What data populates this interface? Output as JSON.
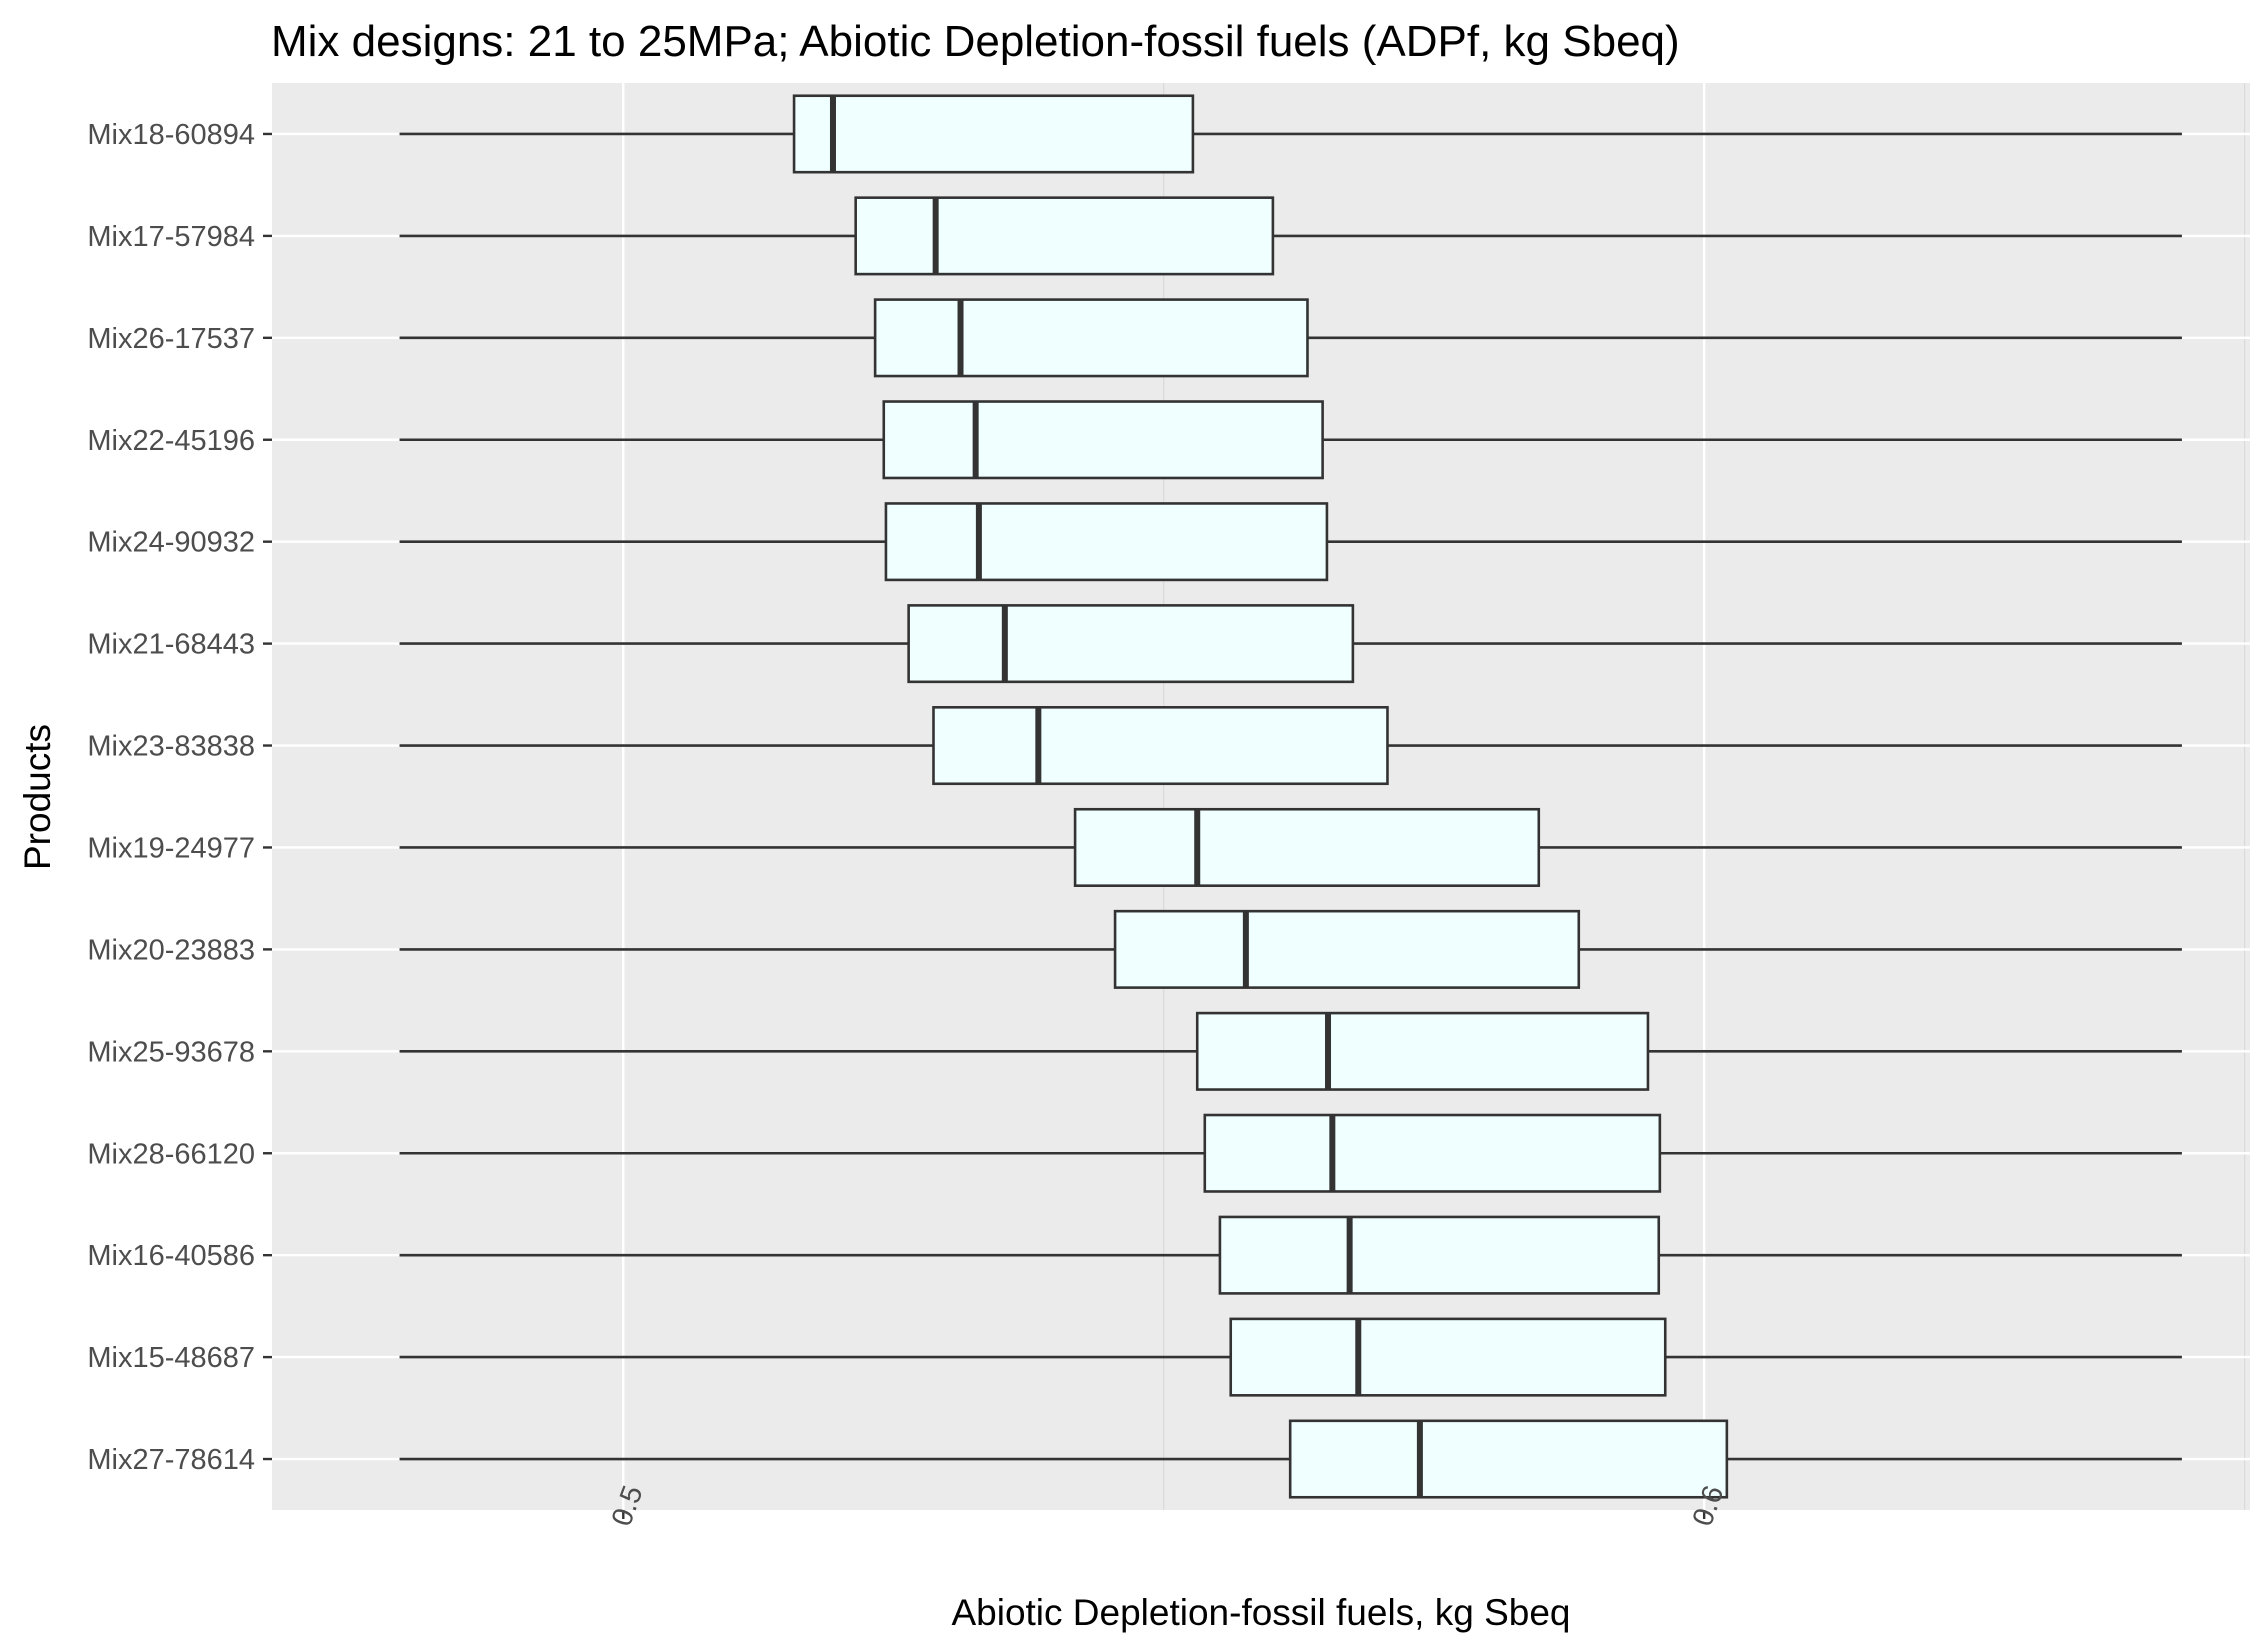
{
  "chart_data": {
    "type": "boxplot",
    "orientation": "horizontal",
    "title": "Mix designs: 21 to 25MPa; Abiotic Depletion-fossil fuels (ADPf, kg Sbeq)",
    "xlabel": "Abiotic Depletion-fossil fuels, kg Sbeq",
    "ylabel": "Products",
    "xlim": [
      0.4675,
      0.6505
    ],
    "x_ticks": [
      0.5,
      0.6
    ],
    "x_tick_labels": [
      "0.5",
      "0.6"
    ],
    "x_tick_label_rotation": -70,
    "grid": true,
    "legend": "none",
    "box_fill": "#F0FFFF",
    "line_color": "#333333",
    "panel_background": "#EBEBEB",
    "grid_color": "#FFFFFF",
    "boxes": [
      {
        "label": "Mix18-60894",
        "whisker_low": 0.4793,
        "q1": 0.5158,
        "median": 0.5194,
        "q3": 0.5527,
        "whisker_high": 0.6442
      },
      {
        "label": "Mix17-57984",
        "whisker_low": 0.4793,
        "q1": 0.5215,
        "median": 0.5289,
        "q3": 0.5601,
        "whisker_high": 0.6442
      },
      {
        "label": "Mix26-17537",
        "whisker_low": 0.4793,
        "q1": 0.5233,
        "median": 0.5312,
        "q3": 0.5633,
        "whisker_high": 0.6442
      },
      {
        "label": "Mix22-45196",
        "whisker_low": 0.4793,
        "q1": 0.5241,
        "median": 0.5326,
        "q3": 0.5647,
        "whisker_high": 0.6442
      },
      {
        "label": "Mix24-90932",
        "whisker_low": 0.4793,
        "q1": 0.5243,
        "median": 0.5329,
        "q3": 0.5651,
        "whisker_high": 0.6442
      },
      {
        "label": "Mix21-68443",
        "whisker_low": 0.4793,
        "q1": 0.5264,
        "median": 0.5353,
        "q3": 0.5675,
        "whisker_high": 0.6442
      },
      {
        "label": "Mix23-83838",
        "whisker_low": 0.4793,
        "q1": 0.5287,
        "median": 0.5384,
        "q3": 0.5707,
        "whisker_high": 0.6442
      },
      {
        "label": "Mix19-24977",
        "whisker_low": 0.4793,
        "q1": 0.5418,
        "median": 0.5531,
        "q3": 0.5847,
        "whisker_high": 0.6442
      },
      {
        "label": "Mix20-23883",
        "whisker_low": 0.4793,
        "q1": 0.5455,
        "median": 0.5576,
        "q3": 0.5884,
        "whisker_high": 0.6442
      },
      {
        "label": "Mix25-93678",
        "whisker_low": 0.4793,
        "q1": 0.5531,
        "median": 0.5652,
        "q3": 0.5948,
        "whisker_high": 0.6442
      },
      {
        "label": "Mix28-66120",
        "whisker_low": 0.4793,
        "q1": 0.5538,
        "median": 0.5656,
        "q3": 0.5959,
        "whisker_high": 0.6442
      },
      {
        "label": "Mix16-40586",
        "whisker_low": 0.4793,
        "q1": 0.5552,
        "median": 0.5672,
        "q3": 0.5958,
        "whisker_high": 0.6442
      },
      {
        "label": "Mix15-48687",
        "whisker_low": 0.4793,
        "q1": 0.5562,
        "median": 0.568,
        "q3": 0.5964,
        "whisker_high": 0.6442
      },
      {
        "label": "Mix27-78614",
        "whisker_low": 0.4793,
        "q1": 0.5617,
        "median": 0.5737,
        "q3": 0.6021,
        "whisker_high": 0.6442
      }
    ]
  }
}
